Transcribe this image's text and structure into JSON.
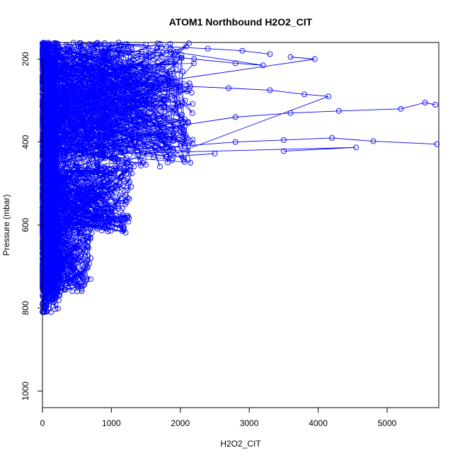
{
  "chart_data": {
    "type": "scatter",
    "title": "ATOM1 Northbound H2O2_CIT",
    "xlabel": "H2O2_CIT",
    "ylabel": "Pressure (mbar)",
    "xlim": [
      0,
      5750
    ],
    "ylim": [
      1040,
      160
    ],
    "y_reversed": true,
    "x_ticks": [
      0,
      1000,
      2000,
      3000,
      4000,
      5000
    ],
    "y_ticks": [
      200,
      400,
      600,
      800,
      1000
    ],
    "x_tick_labels": [
      "0",
      "1000",
      "2000",
      "3000",
      "4000",
      "5000"
    ],
    "y_tick_labels": [
      "200",
      "400",
      "600",
      "800",
      "1000"
    ],
    "grid": false,
    "legend": "none",
    "series": [
      {
        "color": "#0000ff",
        "marker": "open-circle",
        "line": true,
        "description_points": [
          [
            5700,
            310
          ],
          [
            5550,
            305
          ],
          [
            5200,
            320
          ],
          [
            4300,
            325
          ],
          [
            3600,
            330
          ],
          [
            2800,
            340
          ],
          [
            2000,
            360
          ],
          [
            1500,
            380
          ],
          [
            1000,
            400
          ],
          [
            500,
            420
          ],
          [
            5720,
            405
          ],
          [
            4800,
            398
          ],
          [
            4200,
            390
          ],
          [
            3500,
            395
          ],
          [
            2800,
            400
          ],
          [
            2000,
            410
          ],
          [
            1200,
            420
          ],
          [
            600,
            430
          ],
          [
            4550,
            413
          ],
          [
            3500,
            422
          ],
          [
            2500,
            428
          ],
          [
            1800,
            436
          ],
          [
            4150,
            290
          ],
          [
            3800,
            285
          ],
          [
            3300,
            275
          ],
          [
            2700,
            270
          ],
          [
            2000,
            265
          ],
          [
            1400,
            262
          ],
          [
            3950,
            200
          ],
          [
            3600,
            195
          ],
          [
            3300,
            188
          ],
          [
            2900,
            180
          ],
          [
            2400,
            175
          ],
          [
            1800,
            170
          ],
          [
            1200,
            165
          ],
          [
            3200,
            215
          ],
          [
            2800,
            210
          ],
          [
            2200,
            200
          ],
          [
            1600,
            190
          ],
          [
            1000,
            180
          ],
          [
            700,
            680
          ],
          [
            650,
            700
          ],
          [
            550,
            720
          ],
          [
            400,
            740
          ],
          [
            250,
            760
          ],
          [
            150,
            780
          ],
          [
            50,
            800
          ],
          [
            30,
            810
          ],
          [
            20,
            810
          ],
          [
            300,
            700
          ],
          [
            200,
            720
          ],
          [
            100,
            760
          ]
        ]
      }
    ],
    "cloud_regions": [
      {
        "x_from": 0,
        "x_to": 2200,
        "p_from": 160,
        "p_to": 460,
        "count": 900
      },
      {
        "x_from": 0,
        "x_to": 1300,
        "p_from": 450,
        "p_to": 620,
        "count": 500
      },
      {
        "x_from": 0,
        "x_to": 700,
        "p_from": 600,
        "p_to": 760,
        "count": 400
      },
      {
        "x_from": 0,
        "x_to": 250,
        "p_from": 160,
        "p_to": 810,
        "count": 700
      }
    ]
  }
}
